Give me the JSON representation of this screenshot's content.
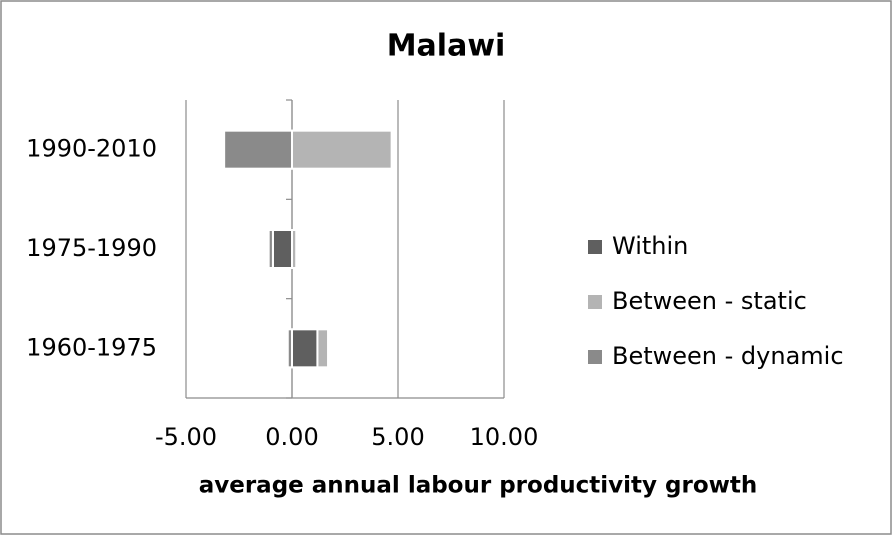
{
  "chart_data": {
    "type": "bar",
    "orientation": "horizontal",
    "stacked": true,
    "title": "Malawi",
    "x_label": "average annual labour productivity growth",
    "categories": [
      "1990-2010",
      "1975-1990",
      "1960-1975"
    ],
    "series": [
      {
        "name": "Within",
        "color": "#5f5f5f",
        "values": [
          0,
          -0.9,
          1.2
        ]
      },
      {
        "name": "Between - static",
        "color": "#b4b4b4",
        "values": [
          4.7,
          0.2,
          0.5
        ]
      },
      {
        "name": "Between - dynamic",
        "color": "#8a8a8a",
        "values": [
          -3.2,
          -0.2,
          -0.2
        ]
      }
    ],
    "xlim": [
      -5,
      10
    ],
    "xticks": [
      {
        "value": -5,
        "label": "-5.00"
      },
      {
        "value": 0,
        "label": "0.00"
      },
      {
        "value": 5,
        "label": "5.00"
      },
      {
        "value": 10,
        "label": "10.00"
      }
    ],
    "grid": true,
    "legend": "right"
  }
}
